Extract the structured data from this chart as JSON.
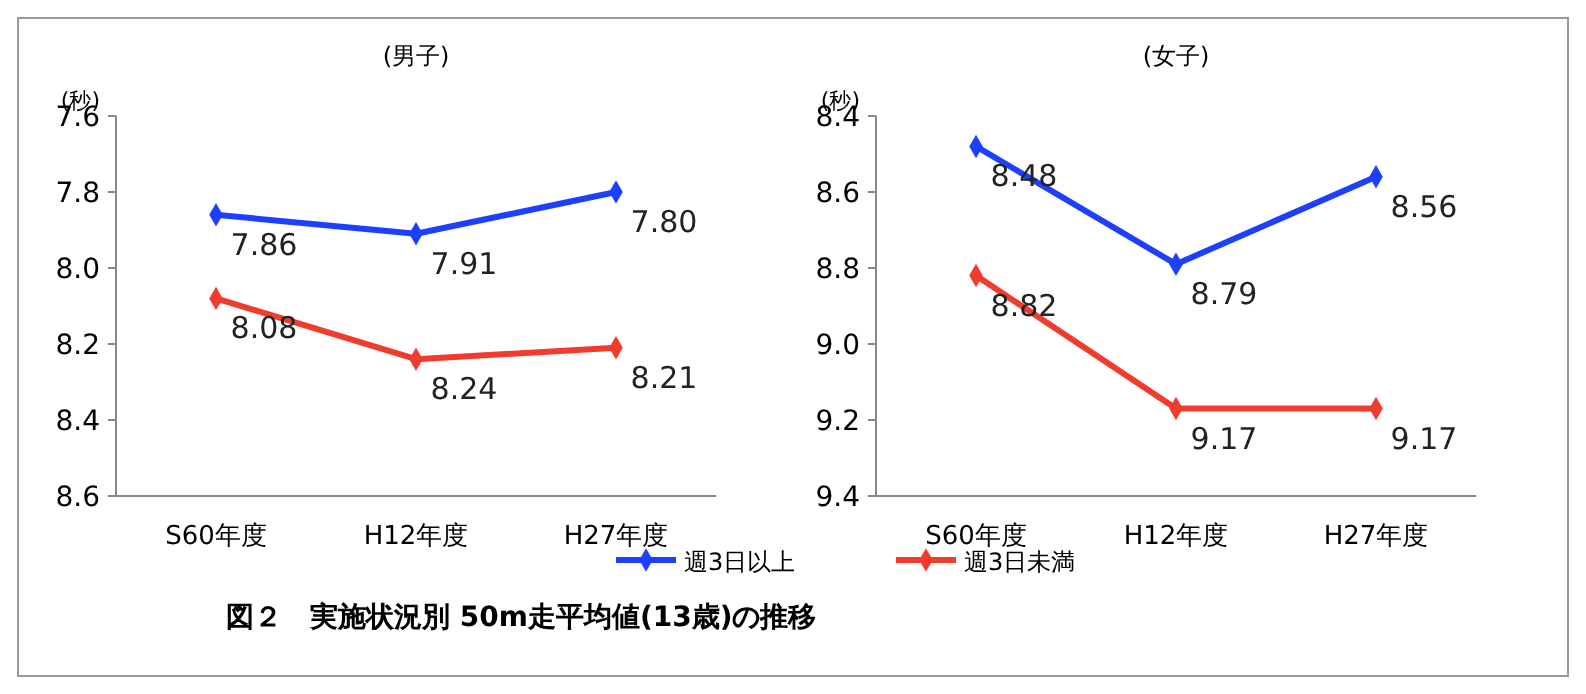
{
  "chart_data": [
    {
      "type": "line",
      "title": "(男子)",
      "ylabel": "(秒)",
      "categories": [
        "S60年度",
        "H12年度",
        "H27年度"
      ],
      "series": [
        {
          "name": "週3日以上",
          "color": "#1f3fff",
          "values": [
            7.86,
            7.91,
            7.8
          ],
          "value_labels": [
            "7.86",
            "7.91",
            "7.80"
          ]
        },
        {
          "name": "週3日未満",
          "color": "#f03c2c",
          "values": [
            8.08,
            8.24,
            8.21
          ],
          "value_labels": [
            "8.08",
            "8.24",
            "8.21"
          ]
        }
      ],
      "ylim": [
        8.6,
        7.6
      ],
      "yticks": [
        {
          "value": 7.6,
          "label": "7.6"
        },
        {
          "value": 7.8,
          "label": "7.8"
        },
        {
          "value": 8,
          "label": "8.0"
        },
        {
          "value": 8.2,
          "label": "8.2"
        },
        {
          "value": 8.4,
          "label": "8.4"
        },
        {
          "value": 8.6,
          "label": "8.6"
        }
      ],
      "marker": "diamond",
      "legend": "bottom",
      "annotations": [
        "図２　実施状況別 50m走平均値(13歳)の推移"
      ]
    },
    {
      "type": "line",
      "title": "(女子)",
      "ylabel": "(秒)",
      "categories": [
        "S60年度",
        "H12年度",
        "H27年度"
      ],
      "series": [
        {
          "color": "#1f3fff",
          "values": [
            8.48,
            8.79,
            8.56
          ]
        },
        {
          "color": "#f03c2c",
          "values": [
            8.82,
            9.17,
            9.17
          ]
        }
      ],
      "ylim": [
        9.4,
        8.4
      ],
      "yticks": [
        {
          "value": 8.4,
          "label": "8.4"
        },
        {
          "value": 8.6,
          "label": "8.6"
        },
        {
          "value": 8.8,
          "label": "8.8"
        },
        {
          "value": 9,
          "label": "9.0"
        },
        {
          "value": 9.2,
          "label": "9.2"
        },
        {
          "value": 9.4,
          "label": "9.4"
        }
      ],
      "marker": "diamond",
      "data_labels": true
    }
  ]
}
